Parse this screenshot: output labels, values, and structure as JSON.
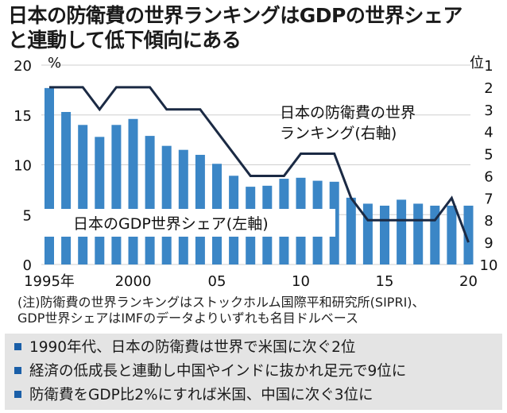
{
  "title_line1": "日本の防衛費の世界ランキングはGDPの世界シェア",
  "title_line2": "と連動して低下傾向にある",
  "chart_data": {
    "type": "bar+line",
    "x": [
      1995,
      1996,
      1997,
      1998,
      1999,
      2000,
      2001,
      2002,
      2003,
      2004,
      2005,
      2006,
      2007,
      2008,
      2009,
      2010,
      2011,
      2012,
      2013,
      2014,
      2015,
      2016,
      2017,
      2018,
      2019,
      2020
    ],
    "x_tick_labels": [
      {
        "year": 1995,
        "label": "1995年"
      },
      {
        "year": 2000,
        "label": "2000"
      },
      {
        "year": 2005,
        "label": "05"
      },
      {
        "year": 2010,
        "label": "10"
      },
      {
        "year": 2015,
        "label": "15"
      },
      {
        "year": 2020,
        "label": "20"
      }
    ],
    "series": [
      {
        "name": "日本のGDP世界シェア(左軸)",
        "axis": "left",
        "type": "bar",
        "values": [
          17.7,
          15.3,
          14.0,
          12.8,
          14.0,
          14.6,
          12.9,
          11.9,
          11.5,
          11.0,
          10.1,
          8.9,
          7.8,
          7.9,
          8.6,
          8.7,
          8.4,
          8.3,
          6.7,
          6.1,
          5.9,
          6.5,
          6.1,
          5.9,
          5.9,
          5.9
        ]
      },
      {
        "name": "日本の防衛費の世界ランキング(右軸)",
        "name_line1": "日本の防衛費の世界",
        "name_line2": "ランキング(右軸)",
        "axis": "right",
        "type": "line",
        "values": [
          2,
          2,
          2,
          3,
          2,
          2,
          2,
          3,
          3,
          3,
          4,
          5,
          6,
          6,
          6,
          5,
          5,
          5,
          7,
          8,
          8,
          8,
          8,
          8,
          7,
          9
        ]
      }
    ],
    "left_axis": {
      "unit": "%",
      "ylim": [
        0,
        20
      ],
      "ticks": [
        0,
        5,
        10,
        15,
        20
      ]
    },
    "right_axis": {
      "unit": "位",
      "ylim": [
        1,
        10
      ],
      "inverted": true,
      "ticks": [
        1,
        2,
        3,
        4,
        5,
        6,
        7,
        8,
        9,
        10
      ]
    },
    "colors": {
      "bar": "#3b86c6",
      "line": "#1b2a44"
    }
  },
  "note_line1": "(注)防衛費の世界ランキングはストックホルム国際平和研究所(SIPRI)、",
  "note_line2": "GDP世界シェアはIMFのデータよりいずれも名目ドルベース",
  "summary": [
    "1990年代、日本の防衛費は世界で米国に次ぐ2位",
    "経済の低成長と連動し中国やインドに抜かれ足元で9位に",
    "防衛費をGDP比2%にすれば米国、中国に次ぐ3位に"
  ]
}
